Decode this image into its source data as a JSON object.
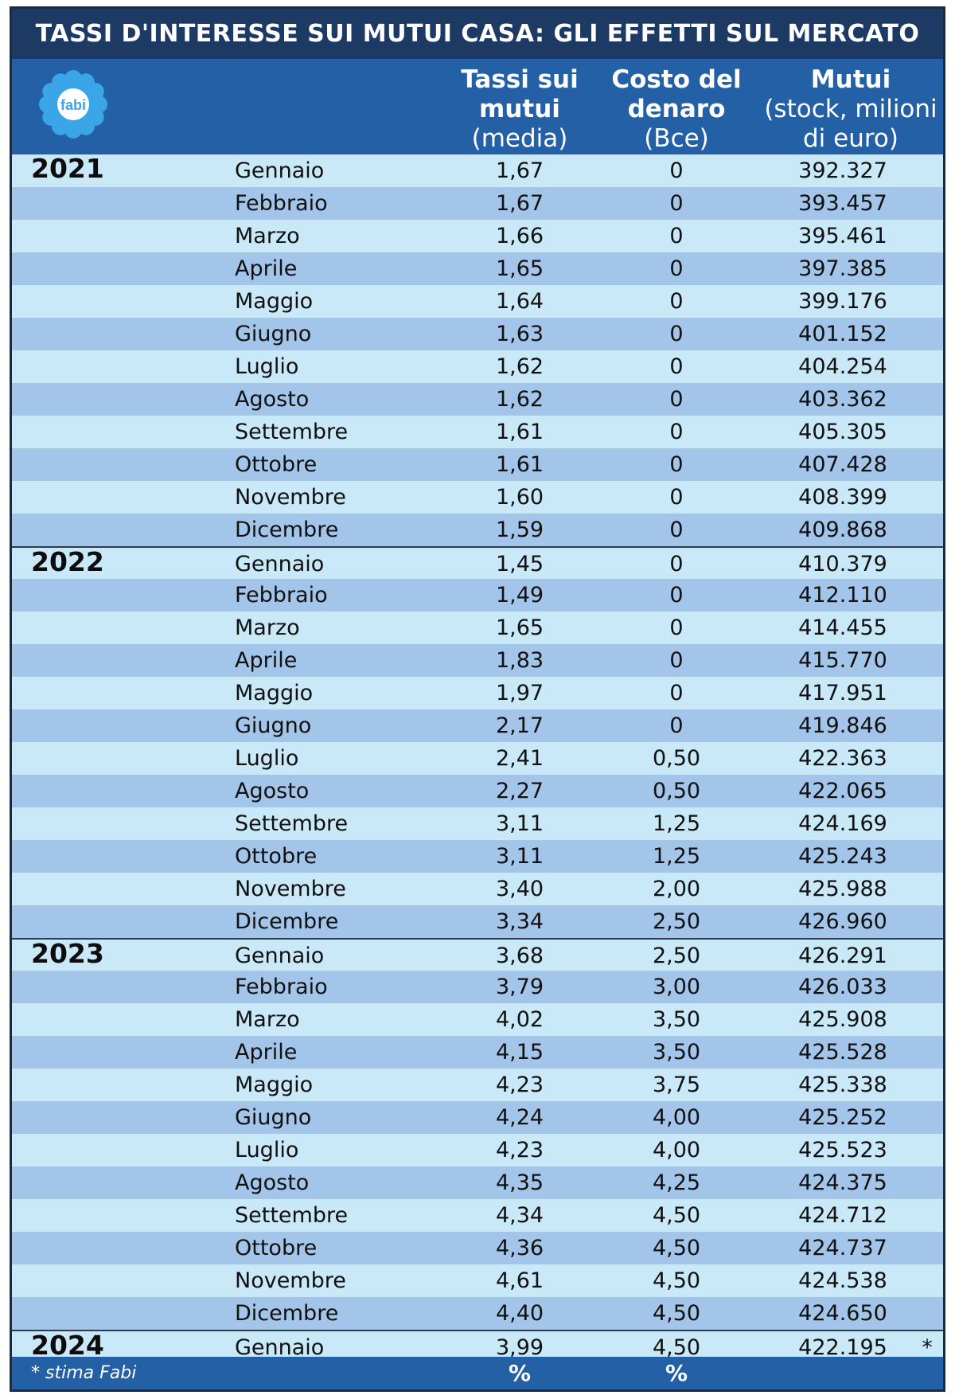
{
  "title": "TASSI D'INTERESSE SUI MUTUI CASA: GLI EFFETTI SUL MERCATO",
  "logo_text": "fabi",
  "colors": {
    "title_bg": "#1c3a63",
    "header_bg": "#2460a5",
    "row_light": "#c9e8f8",
    "row_dark": "#a3c5e9",
    "logo_blue": "#3aa6e8"
  },
  "headers": {
    "rate": {
      "bold": "Tassi sui mutui",
      "normal": "(media)"
    },
    "cost": {
      "bold": "Costo del denaro",
      "normal": "(Bce)"
    },
    "stock": {
      "bold": "Mutui",
      "normal": "(stock, milioni di euro)"
    }
  },
  "footer": {
    "note": "* stima Fabi",
    "rate_unit": "%",
    "cost_unit": "%"
  },
  "chart_data": {
    "type": "table",
    "title": "TASSI D'INTERESSE SUI MUTUI CASA: GLI EFFETTI SUL MERCATO",
    "columns": [
      "",
      "",
      "Tassi sui mutui (media)",
      "Costo del denaro (Bce)",
      "Mutui (stock, milioni di euro)"
    ],
    "rows": [
      {
        "year": "2021",
        "month": "Gennaio",
        "rate": "1,67",
        "cost": "0",
        "stock": "392.327"
      },
      {
        "year": "",
        "month": "Febbraio",
        "rate": "1,67",
        "cost": "0",
        "stock": "393.457"
      },
      {
        "year": "",
        "month": "Marzo",
        "rate": "1,66",
        "cost": "0",
        "stock": "395.461"
      },
      {
        "year": "",
        "month": "Aprile",
        "rate": "1,65",
        "cost": "0",
        "stock": "397.385"
      },
      {
        "year": "",
        "month": "Maggio",
        "rate": "1,64",
        "cost": "0",
        "stock": "399.176"
      },
      {
        "year": "",
        "month": "Giugno",
        "rate": "1,63",
        "cost": "0",
        "stock": "401.152"
      },
      {
        "year": "",
        "month": "Luglio",
        "rate": "1,62",
        "cost": "0",
        "stock": "404.254"
      },
      {
        "year": "",
        "month": "Agosto",
        "rate": "1,62",
        "cost": "0",
        "stock": "403.362"
      },
      {
        "year": "",
        "month": "Settembre",
        "rate": "1,61",
        "cost": "0",
        "stock": "405.305"
      },
      {
        "year": "",
        "month": "Ottobre",
        "rate": "1,61",
        "cost": "0",
        "stock": "407.428"
      },
      {
        "year": "",
        "month": "Novembre",
        "rate": "1,60",
        "cost": "0",
        "stock": "408.399"
      },
      {
        "year": "",
        "month": "Dicembre",
        "rate": "1,59",
        "cost": "0",
        "stock": "409.868"
      },
      {
        "year": "2022",
        "month": "Gennaio",
        "rate": "1,45",
        "cost": "0",
        "stock": "410.379"
      },
      {
        "year": "",
        "month": "Febbraio",
        "rate": "1,49",
        "cost": "0",
        "stock": "412.110"
      },
      {
        "year": "",
        "month": "Marzo",
        "rate": "1,65",
        "cost": "0",
        "stock": "414.455"
      },
      {
        "year": "",
        "month": "Aprile",
        "rate": "1,83",
        "cost": "0",
        "stock": "415.770"
      },
      {
        "year": "",
        "month": "Maggio",
        "rate": "1,97",
        "cost": "0",
        "stock": "417.951"
      },
      {
        "year": "",
        "month": "Giugno",
        "rate": "2,17",
        "cost": "0",
        "stock": "419.846"
      },
      {
        "year": "",
        "month": "Luglio",
        "rate": "2,41",
        "cost": "0,50",
        "stock": "422.363"
      },
      {
        "year": "",
        "month": "Agosto",
        "rate": "2,27",
        "cost": "0,50",
        "stock": "422.065"
      },
      {
        "year": "",
        "month": "Settembre",
        "rate": "3,11",
        "cost": "1,25",
        "stock": "424.169"
      },
      {
        "year": "",
        "month": "Ottobre",
        "rate": "3,11",
        "cost": "1,25",
        "stock": "425.243"
      },
      {
        "year": "",
        "month": "Novembre",
        "rate": "3,40",
        "cost": "2,00",
        "stock": "425.988"
      },
      {
        "year": "",
        "month": "Dicembre",
        "rate": "3,34",
        "cost": "2,50",
        "stock": "426.960"
      },
      {
        "year": "2023",
        "month": "Gennaio",
        "rate": "3,68",
        "cost": "2,50",
        "stock": "426.291"
      },
      {
        "year": "",
        "month": "Febbraio",
        "rate": "3,79",
        "cost": "3,00",
        "stock": "426.033"
      },
      {
        "year": "",
        "month": "Marzo",
        "rate": "4,02",
        "cost": "3,50",
        "stock": "425.908"
      },
      {
        "year": "",
        "month": "Aprile",
        "rate": "4,15",
        "cost": "3,50",
        "stock": "425.528"
      },
      {
        "year": "",
        "month": "Maggio",
        "rate": "4,23",
        "cost": "3,75",
        "stock": "425.338"
      },
      {
        "year": "",
        "month": "Giugno",
        "rate": "4,24",
        "cost": "4,00",
        "stock": "425.252"
      },
      {
        "year": "",
        "month": "Luglio",
        "rate": "4,23",
        "cost": "4,00",
        "stock": "425.523"
      },
      {
        "year": "",
        "month": "Agosto",
        "rate": "4,35",
        "cost": "4,25",
        "stock": "424.375"
      },
      {
        "year": "",
        "month": "Settembre",
        "rate": "4,34",
        "cost": "4,50",
        "stock": "424.712"
      },
      {
        "year": "",
        "month": "Ottobre",
        "rate": "4,36",
        "cost": "4,50",
        "stock": "424.737"
      },
      {
        "year": "",
        "month": "Novembre",
        "rate": "4,61",
        "cost": "4,50",
        "stock": "424.538"
      },
      {
        "year": "",
        "month": "Dicembre",
        "rate": "4,40",
        "cost": "4,50",
        "stock": "424.650"
      },
      {
        "year": "2024",
        "month": "Gennaio",
        "rate": "3,99",
        "cost": "4,50",
        "stock": "422.195",
        "note": "*"
      }
    ]
  }
}
